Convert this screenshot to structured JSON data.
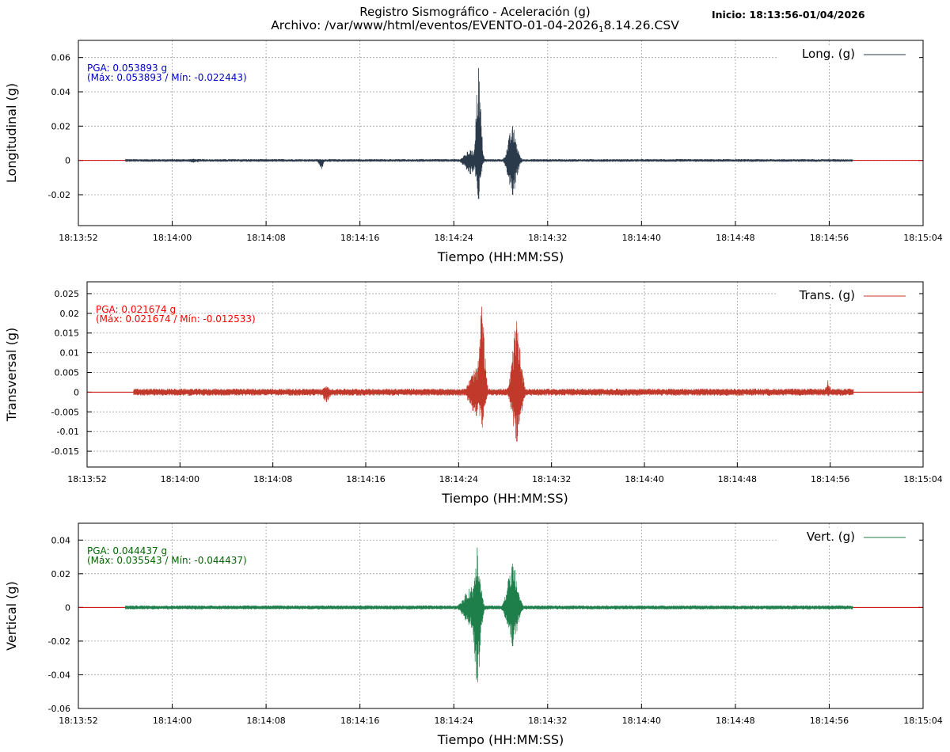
{
  "header": {
    "title_line1": "Registro Sismográfico - Aceleración (g)",
    "title_line2_prefix": "Archivo: /var/www/html/eventos/EVENTO-01-04-2026",
    "title_line2_sub": "1",
    "title_line2_suffix": "8.14.26.CSV",
    "start": "Inicio: 18:13:56-01/04/2026"
  },
  "chart_data": [
    {
      "type": "line",
      "series": [
        {
          "name": "Long. (g)",
          "color": "#2b3a4a"
        }
      ],
      "ylabel": "Longitudinal (g)",
      "xlabel": "Tiempo (HH:MM:SS)",
      "x_ticks": [
        "18:13:52",
        "18:14:00",
        "18:14:08",
        "18:14:16",
        "18:14:24",
        "18:14:32",
        "18:14:40",
        "18:14:48",
        "18:14:56",
        "18:15:04"
      ],
      "xlim": [
        "18:13:52",
        "18:15:04"
      ],
      "ylim": [
        -0.038,
        0.07
      ],
      "y_ticks": [
        -0.02,
        0,
        0.02,
        0.04,
        0.06
      ],
      "y_tick_labels": [
        "-0.02",
        "0",
        "0.02",
        "0.04",
        "0.06"
      ],
      "grid": true,
      "legend": "top-right",
      "zero_line_color": "#cc0000",
      "annotation_color": "#0000cc",
      "annotation_pga": "PGA: 0.053893 g",
      "annotation_range": "(Máx: 0.053893 / Mín: -0.022443)",
      "signal": {
        "x_start": "18:13:56",
        "x_end": "18:14:58",
        "noise_amp": 0.0008,
        "events": [
          {
            "t": "18:14:01.8",
            "peak": 0.001,
            "min": -0.0012,
            "width": 1.0
          },
          {
            "t": "18:14:12.7",
            "peak": 0.0005,
            "min": -0.005,
            "width": 0.3
          },
          {
            "t": "18:14:25.4",
            "peak": 0.006,
            "min": -0.008,
            "width": 0.8
          },
          {
            "t": "18:14:26.1",
            "peak": 0.053893,
            "min": -0.022443,
            "width": 0.35
          },
          {
            "t": "18:14:29.0",
            "peak": 0.02,
            "min": -0.02,
            "width": 0.6
          }
        ]
      }
    },
    {
      "type": "line",
      "series": [
        {
          "name": "Trans. (g)",
          "color": "#c0392b"
        }
      ],
      "ylabel": "Transversal (g)",
      "xlabel": "Tiempo (HH:MM:SS)",
      "x_ticks": [
        "18:13:52",
        "18:14:00",
        "18:14:08",
        "18:14:16",
        "18:14:24",
        "18:14:32",
        "18:14:40",
        "18:14:48",
        "18:14:56",
        "18:15:04"
      ],
      "xlim": [
        "18:13:52",
        "18:15:04"
      ],
      "ylim": [
        -0.019,
        0.028
      ],
      "y_ticks": [
        -0.015,
        -0.01,
        -0.005,
        0,
        0.005,
        0.01,
        0.015,
        0.02,
        0.025
      ],
      "y_tick_labels": [
        "-0.015",
        "-0.01",
        "-0.005",
        "0",
        "0.005",
        "0.01",
        "0.015",
        "0.02",
        "0.025"
      ],
      "grid": true,
      "legend": "top-right",
      "zero_line_color": "#cc0000",
      "annotation_color": "#ff0000",
      "annotation_pga": "PGA: 0.021674 g",
      "annotation_range": "(Máx: 0.021674 / Mín: -0.012533)",
      "signal": {
        "x_start": "18:13:56",
        "x_end": "18:14:58",
        "noise_amp": 0.0009,
        "events": [
          {
            "t": "18:14:12.6",
            "peak": 0.0015,
            "min": -0.0025,
            "width": 0.5
          },
          {
            "t": "18:14:25.5",
            "peak": 0.006,
            "min": -0.006,
            "width": 0.9
          },
          {
            "t": "18:14:26.0",
            "peak": 0.021674,
            "min": -0.009,
            "width": 0.4
          },
          {
            "t": "18:14:29.0",
            "peak": 0.018,
            "min": -0.012533,
            "width": 0.6
          },
          {
            "t": "18:14:55.8",
            "peak": 0.003,
            "min": -0.001,
            "width": 0.3
          }
        ]
      }
    },
    {
      "type": "line",
      "series": [
        {
          "name": "Vert. (g)",
          "color": "#1e7f4a"
        }
      ],
      "ylabel": "Vertical (g)",
      "xlabel": "Tiempo (HH:MM:SS)",
      "x_ticks": [
        "18:13:52",
        "18:14:00",
        "18:14:08",
        "18:14:16",
        "18:14:24",
        "18:14:32",
        "18:14:40",
        "18:14:48",
        "18:14:56",
        "18:15:04"
      ],
      "xlim": [
        "18:13:52",
        "18:15:04"
      ],
      "ylim": [
        -0.06,
        0.05
      ],
      "y_ticks": [
        -0.06,
        -0.04,
        -0.02,
        0,
        0.02,
        0.04
      ],
      "y_tick_labels": [
        "-0.06",
        "-0.04",
        "-0.02",
        "0",
        "0.02",
        "0.04"
      ],
      "grid": true,
      "legend": "top-right",
      "zero_line_color": "#cc0000",
      "annotation_color": "#006600",
      "annotation_pga": "PGA: 0.044437 g",
      "annotation_range": "(Máx: 0.035543 / Mín: -0.044437)",
      "signal": {
        "x_start": "18:13:56",
        "x_end": "18:14:58",
        "noise_amp": 0.0012,
        "events": [
          {
            "t": "18:14:25.5",
            "peak": 0.012,
            "min": -0.012,
            "width": 1.0
          },
          {
            "t": "18:14:26.0",
            "peak": 0.035543,
            "min": -0.044437,
            "width": 0.45
          },
          {
            "t": "18:14:29.0",
            "peak": 0.026,
            "min": -0.023,
            "width": 0.7
          }
        ]
      }
    }
  ]
}
